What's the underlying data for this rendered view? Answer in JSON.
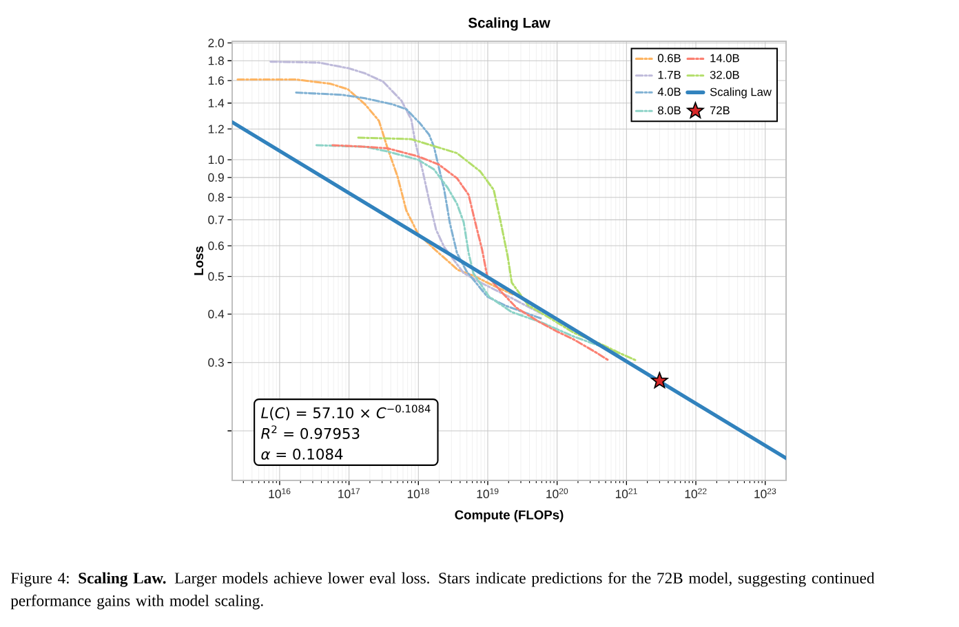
{
  "chart_data": {
    "type": "line",
    "title": "Scaling Law",
    "xlabel": "Compute (FLOPs)",
    "ylabel": "Loss",
    "log": "xy",
    "grid": true,
    "legend": "top right",
    "xlim": [
      2070000000000000.0,
      2e+23
    ],
    "ylim": [
      0.149,
      2.02
    ],
    "xticks": [
      {
        "value": 1e+16,
        "label": "10$^{16}$"
      },
      {
        "value": 1e+17,
        "label": "10$^{17}$"
      },
      {
        "value": 1e+18,
        "label": "10$^{18}$"
      },
      {
        "value": 1e+19,
        "label": "10$^{19}$"
      },
      {
        "value": 1e+20,
        "label": "10$^{20}$"
      },
      {
        "value": 1e+21,
        "label": "10$^{21}$"
      },
      {
        "value": 1e+22,
        "label": "10$^{22}$"
      },
      {
        "value": 1e+23,
        "label": "10$^{23}$"
      }
    ],
    "yticks": [
      {
        "value": 0.2,
        "label": null
      },
      0.3,
      0.4,
      0.5,
      0.6,
      0.7,
      0.8,
      0.9,
      {
        "value": 1.0,
        "label": "1.0"
      },
      1.2,
      1.4,
      1.6,
      1.8,
      {
        "value": 2.0,
        "label": "2.0"
      }
    ],
    "series": [
      {
        "name": "0.6B",
        "type": "line",
        "line_style": "dashed",
        "color": "#fdb462",
        "x": [
          2480000000000000.0,
          1.73e+16,
          5.4e+16,
          9.6e+16,
          1.7e+17,
          2.7e+17,
          3.6e+17,
          5e+17,
          6.7e+17,
          9.8e+17,
          1.67e+18,
          2.6e+18,
          3.7e+18,
          6.6e+18,
          1.31e+19,
          2.3e+19
        ],
        "values": [
          1.61,
          1.61,
          1.57,
          1.52,
          1.39,
          1.26,
          1.07,
          0.906,
          0.74,
          0.646,
          0.59,
          0.55,
          0.52,
          0.5,
          0.47,
          0.45
        ]
      },
      {
        "name": "1.7B",
        "type": "line",
        "line_style": "dashed",
        "color": "#bebada",
        "x": [
          7400000000000000.0,
          3.7e+16,
          1e+17,
          1.7e+17,
          3.1e+17,
          5.7e+17,
          7.9e+17,
          9e+17,
          1.14e+18,
          1.42e+18,
          1.8e+18,
          2.36e+18,
          4.5e+18,
          8.3e+18,
          2.2e+19,
          6.1e+19
        ],
        "values": [
          1.79,
          1.78,
          1.72,
          1.67,
          1.59,
          1.42,
          1.27,
          1.11,
          0.944,
          0.79,
          0.66,
          0.595,
          0.51,
          0.48,
          0.44,
          0.4
        ]
      },
      {
        "name": "4.0B",
        "type": "line",
        "line_style": "dashed",
        "color": "#80b1d3",
        "x": [
          1.73e+16,
          8e+16,
          1.7e+17,
          4.2e+17,
          6.7e+17,
          1.06e+18,
          1.43e+18,
          1.68e+18,
          1.97e+18,
          2.36e+18,
          2.84e+18,
          3.6e+18,
          4.9e+18,
          9.8e+18,
          1.77e+19,
          5.8e+19
        ],
        "values": [
          1.49,
          1.47,
          1.44,
          1.39,
          1.35,
          1.24,
          1.16,
          1.08,
          0.956,
          0.836,
          0.687,
          0.575,
          0.517,
          0.444,
          0.421,
          0.39
        ]
      },
      {
        "name": "8.0B",
        "type": "line",
        "line_style": "dashed",
        "color": "#8dd3c7",
        "x": [
          3.4e+16,
          1.7e+17,
          3.6e+17,
          9.9e+17,
          1.68e+18,
          2.65e+18,
          3.6e+18,
          4.5e+18,
          5.3e+18,
          6.2e+18,
          1.04e+19,
          2.2e+19,
          6.1e+19,
          1.74e+20,
          5.5e+20,
          8.05e+20
        ],
        "values": [
          1.09,
          1.08,
          1.05,
          1.0,
          0.944,
          0.846,
          0.77,
          0.69,
          0.575,
          0.51,
          0.444,
          0.405,
          0.38,
          0.35,
          0.325,
          0.316
        ]
      },
      {
        "name": "14.0B",
        "type": "line",
        "line_style": "dashed",
        "color": "#fb8072",
        "x": [
          5.8e+16,
          1.7e+17,
          3.6e+17,
          9.9e+17,
          1.97e+18,
          3.6e+18,
          5.3e+18,
          6.6e+18,
          8.3e+18,
          9.8e+18,
          1.56e+19,
          2.6e+19,
          5.5e+19,
          9.6e+19,
          1.74e+20,
          3.8e+20,
          5.5e+20
        ],
        "values": [
          1.09,
          1.08,
          1.07,
          1.02,
          0.972,
          0.896,
          0.812,
          0.69,
          0.586,
          0.502,
          0.457,
          0.415,
          0.382,
          0.362,
          0.344,
          0.317,
          0.304
        ]
      },
      {
        "name": "32.0B",
        "type": "line",
        "line_style": "dashed",
        "color": "#b3de69",
        "x": [
          1.36e+17,
          7.9e+17,
          3.6e+18,
          7.8e+18,
          1.22e+19,
          1.54e+19,
          1.94e+19,
          2.22e+19,
          3.85e+19,
          8.2e+19,
          1.74e+20,
          3.8e+20,
          8.05e+20,
          1.36e+21
        ],
        "values": [
          1.14,
          1.13,
          1.04,
          0.933,
          0.836,
          0.69,
          0.563,
          0.482,
          0.421,
          0.389,
          0.358,
          0.338,
          0.317,
          0.304
        ]
      },
      {
        "name": "Scaling Law",
        "type": "line",
        "line_style": "solid",
        "color": "#3182bd",
        "x": [
          2070000000000000.0,
          2e+23
        ],
        "values": [
          1.25,
          0.17
        ]
      },
      {
        "name": "72B",
        "type": "scatter",
        "marker": "star",
        "color": "#d62728",
        "x": [
          3e+21
        ],
        "values": [
          0.269
        ]
      }
    ],
    "annotations": [
      "*L*(*C*) = 57.10 × *C*$^{−0.1084}$",
      "*R*$^{2}$ = 0.97953",
      "*α* = 0.1084",
      "Figure 4: **Scaling Law.** Larger models achieve lower eval loss. Stars indicate predictions for the 72B model, suggesting continued performance gains with model scaling."
    ]
  }
}
